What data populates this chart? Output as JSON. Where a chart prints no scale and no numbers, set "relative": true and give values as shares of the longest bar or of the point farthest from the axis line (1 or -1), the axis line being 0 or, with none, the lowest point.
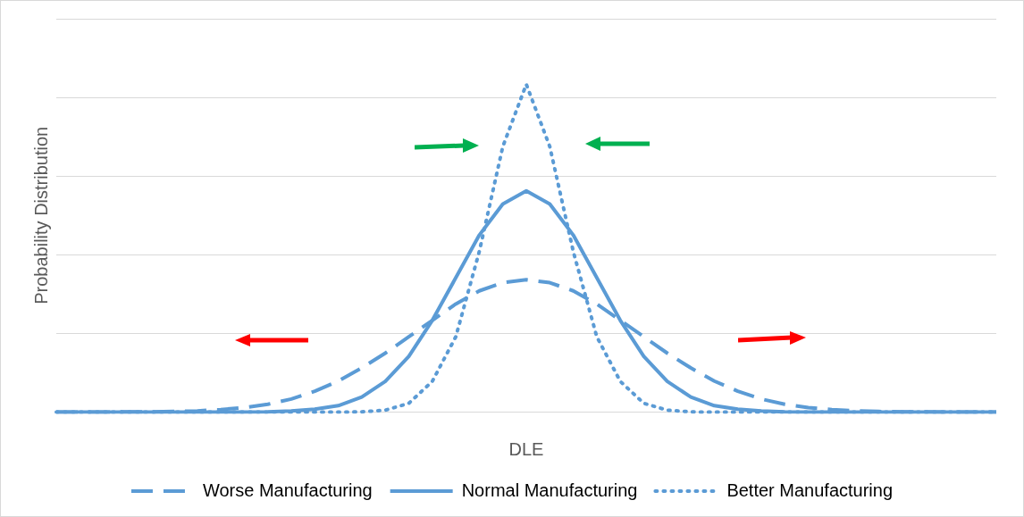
{
  "chart_data": {
    "type": "line",
    "relative": true,
    "xlabel": "DLE",
    "ylabel": "Probability Distribution",
    "grid": "y",
    "legend": "bottom",
    "marker": "none",
    "categories": [
      null,
      null,
      null,
      null,
      null,
      null,
      null,
      null,
      null,
      null,
      null,
      null,
      null,
      null,
      null,
      null,
      null,
      null,
      null,
      null,
      null,
      null,
      null,
      null,
      null,
      null,
      null,
      null,
      null,
      null,
      null,
      null,
      null,
      null,
      null,
      null,
      null,
      null,
      null,
      null,
      null
    ],
    "series": [
      {
        "name": "Worse Manufacturing",
        "color": "#5b9bd5",
        "line_style": "dashed",
        "values": [
          0,
          0,
          0,
          0.001,
          0.001,
          0.002,
          0.004,
          0.008,
          0.014,
          0.024,
          0.04,
          0.064,
          0.095,
          0.135,
          0.18,
          0.23,
          0.28,
          0.33,
          0.37,
          0.395,
          0.404,
          0.395,
          0.37,
          0.33,
          0.28,
          0.23,
          0.18,
          0.135,
          0.095,
          0.064,
          0.04,
          0.024,
          0.014,
          0.008,
          0.004,
          0.002,
          0.001,
          0.001,
          0,
          0,
          0
        ]
      },
      {
        "name": "Normal Manufacturing",
        "color": "#5b9bd5",
        "line_style": "solid",
        "values": [
          0,
          0,
          0,
          0,
          0,
          0,
          0,
          0,
          0,
          0.001,
          0.004,
          0.009,
          0.02,
          0.046,
          0.094,
          0.17,
          0.28,
          0.41,
          0.54,
          0.635,
          0.675,
          0.635,
          0.54,
          0.41,
          0.28,
          0.17,
          0.094,
          0.046,
          0.02,
          0.009,
          0.004,
          0.001,
          0,
          0,
          0,
          0,
          0,
          0,
          0,
          0,
          0
        ]
      },
      {
        "name": "Better Manufacturing",
        "color": "#5b9bd5",
        "line_style": "dotted",
        "values": [
          0,
          0,
          0,
          0,
          0,
          0,
          0,
          0,
          0,
          0,
          0,
          0,
          0,
          0.001,
          0.006,
          0.027,
          0.094,
          0.23,
          0.49,
          0.81,
          1,
          0.81,
          0.49,
          0.23,
          0.094,
          0.027,
          0.006,
          0.001,
          0,
          0,
          0,
          0,
          0,
          0,
          0,
          0,
          0,
          0,
          0,
          0,
          0
        ]
      }
    ]
  }
}
